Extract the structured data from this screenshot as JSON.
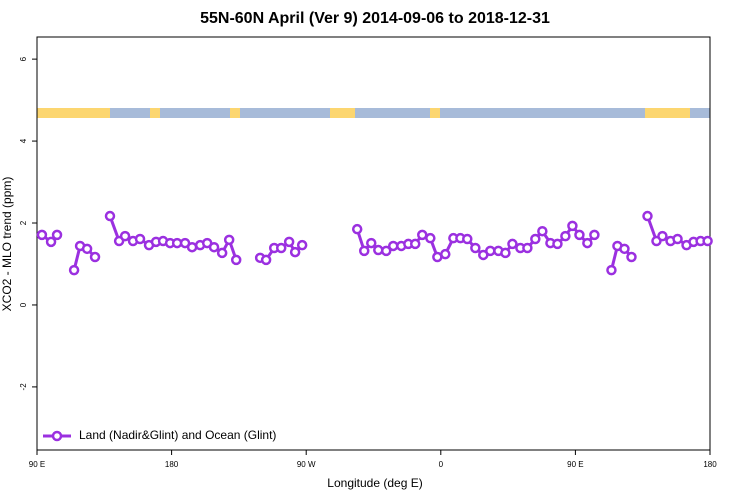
{
  "chart_data": {
    "type": "line",
    "title": "55N-60N April (Ver 9)   2014-09-06 to 2018-12-31",
    "x_label": "Longitude (deg E)",
    "y_label": "XCO2 - MLO trend (ppm)",
    "xlim": [
      90,
      540
    ],
    "ylim": [
      -3.54,
      6.54
    ],
    "xticks": [
      {
        "value": 90,
        "label": "90 E"
      },
      180,
      {
        "value": 270,
        "label": "90 W"
      },
      {
        "value": 360,
        "label": "0"
      },
      {
        "value": 450,
        "label": "90 E"
      },
      {
        "value": 540,
        "label": "180"
      }
    ],
    "yticks": [
      -2,
      0,
      2,
      4,
      6
    ],
    "legend": "bottom-left",
    "series": [
      {
        "name": "Land (Nadir&Glint) and Ocean (Glint)",
        "color": "#9b30e0",
        "x": [
          93.3,
          99.4,
          103.4,
          null,
          114.8,
          118.8,
          123.5,
          128.8,
          null,
          138.8,
          144.9,
          148.9,
          154.2,
          158.9,
          164.9,
          169.6,
          174.3,
          179,
          183.7,
          189,
          193.7,
          199.1,
          203.8,
          208.4,
          213.8,
          218.5,
          223.2,
          null,
          239.2,
          243.2,
          248.6,
          253.3,
          258.6,
          262.6,
          267.3,
          null,
          304.1,
          308.8,
          313.5,
          318.2,
          323.5,
          328.2,
          333.6,
          338.3,
          342.9,
          347.6,
          353.0,
          357.7,
          363.0,
          368.4,
          373.1,
          377.7,
          383.1,
          388.4,
          393.1,
          398.5,
          403.2,
          407.9,
          413.2,
          417.9,
          423.2,
          427.9,
          433.3,
          438.0,
          443.3,
          448.0,
          452.7,
          458.0,
          462.7,
          null,
          474.1,
          478.1,
          482.8,
          487.5,
          null,
          498.2,
          504.2,
          508.2,
          513.6,
          518.3,
          524.3,
          529.0,
          533.7,
          538.4
        ],
        "values": [
          1.71,
          1.54,
          1.71,
          null,
          0.85,
          1.44,
          1.37,
          1.17,
          null,
          2.17,
          1.56,
          1.68,
          1.56,
          1.61,
          1.46,
          1.54,
          1.56,
          1.51,
          1.51,
          1.51,
          1.41,
          1.46,
          1.51,
          1.41,
          1.27,
          1.59,
          1.1,
          null,
          1.15,
          1.1,
          1.39,
          1.39,
          1.54,
          1.29,
          1.46,
          null,
          1.85,
          1.32,
          1.51,
          1.34,
          1.32,
          1.44,
          1.44,
          1.49,
          1.49,
          1.71,
          1.63,
          1.17,
          1.24,
          1.63,
          1.63,
          1.61,
          1.39,
          1.22,
          1.32,
          1.32,
          1.27,
          1.49,
          1.39,
          1.39,
          1.61,
          1.8,
          1.51,
          1.49,
          1.68,
          1.93,
          1.71,
          1.51,
          1.71,
          null,
          0.85,
          1.44,
          1.37,
          1.17,
          null,
          2.17,
          1.56,
          1.68,
          1.56,
          1.61,
          1.46,
          1.54,
          1.56,
          1.56
        ]
      }
    ]
  }
}
